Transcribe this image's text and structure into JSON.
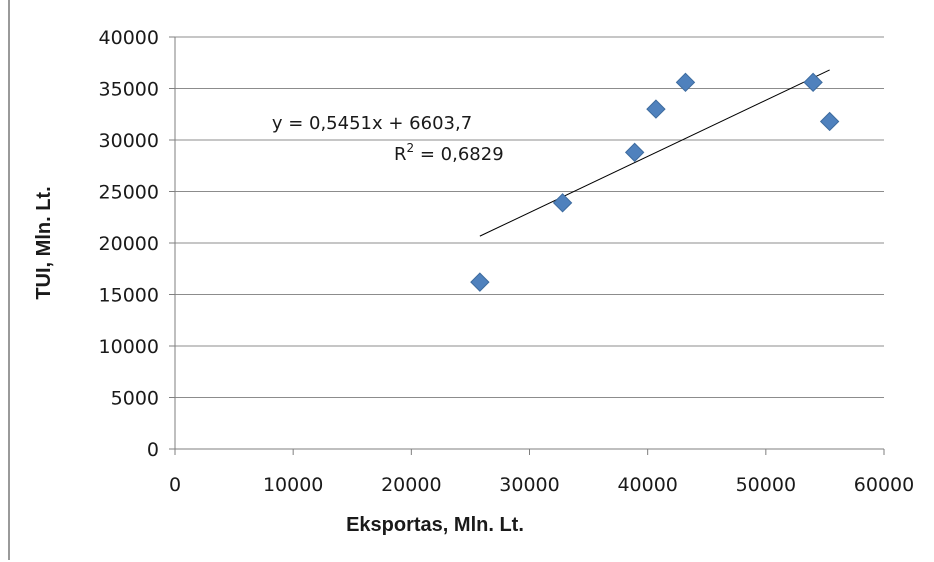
{
  "chart_data": {
    "type": "scatter",
    "xlabel": "Eksportas, Mln. Lt.",
    "ylabel": "TUI, Mln. Lt.",
    "xlim": [
      0,
      60000
    ],
    "ylim": [
      0,
      40000
    ],
    "x_ticks": [
      "0",
      "10000",
      "20000",
      "30000",
      "40000",
      "50000",
      "60000"
    ],
    "y_ticks": [
      "0",
      "5000",
      "10000",
      "15000",
      "20000",
      "25000",
      "30000",
      "35000",
      "40000"
    ],
    "grid": "horizontal",
    "legend": "none",
    "series": [
      {
        "marker": "diamond",
        "color": "#4f81bd",
        "points": [
          {
            "x": 25800,
            "y": 16200
          },
          {
            "x": 32800,
            "y": 23900
          },
          {
            "x": 38900,
            "y": 28800
          },
          {
            "x": 40700,
            "y": 33000
          },
          {
            "x": 43200,
            "y": 35600
          },
          {
            "x": 54000,
            "y": 35600
          },
          {
            "x": 55400,
            "y": 31800
          }
        ]
      }
    ],
    "trendline": {
      "type": "linear",
      "slope": 0.5451,
      "intercept": 6603.7,
      "x_range": [
        25800,
        55400
      ],
      "color": "#000000",
      "equation_text": "y = 0,5451x + 6603,7",
      "r2_label": "R",
      "r2_sup": "2",
      "r2_value_text": " = 0,6829"
    }
  }
}
